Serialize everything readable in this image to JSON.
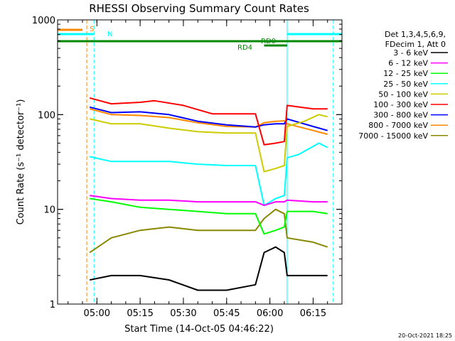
{
  "chart_data": {
    "type": "line",
    "title": "RHESSI Observing Summary Count Rates",
    "xlabel": "Start Time (14-Oct-05 04:46:22)",
    "ylabel": "Count Rate (s⁻¹ detector⁻¹)",
    "y_scale": "log",
    "ylim": [
      1,
      1000
    ],
    "xlim": [
      "04:46:22",
      "06:25:00"
    ],
    "x_ticks": [
      "05:00",
      "05:15",
      "05:30",
      "05:45",
      "06:00",
      "06:15"
    ],
    "y_ticks": [
      "1",
      "10",
      "100",
      "1000"
    ],
    "legend_header": [
      "Det 1,3,4,5,6,9,",
      "FDecim 1, Att 0"
    ],
    "legend_position": "right",
    "series": [
      {
        "name": "3 - 6 keV",
        "color": "#000000",
        "points": [
          [
            "04:57:30",
            1.8
          ],
          [
            "05:05",
            2.0
          ],
          [
            "05:15",
            2.0
          ],
          [
            "05:25",
            1.8
          ],
          [
            "05:35",
            1.4
          ],
          [
            "05:45",
            1.4
          ],
          [
            "05:55",
            1.6
          ],
          [
            "05:58",
            3.5
          ],
          [
            "06:02",
            4.0
          ],
          [
            "06:05",
            3.5
          ],
          [
            "06:06",
            2.0
          ],
          [
            "06:15",
            2.0
          ],
          [
            "06:20",
            2.0
          ]
        ]
      },
      {
        "name": "6 - 12 keV",
        "color": "#ff00ff",
        "points": [
          [
            "04:57:30",
            14
          ],
          [
            "05:05",
            13
          ],
          [
            "05:15",
            12.5
          ],
          [
            "05:25",
            12.5
          ],
          [
            "05:35",
            12
          ],
          [
            "05:45",
            12
          ],
          [
            "05:55",
            12
          ],
          [
            "05:58",
            11
          ],
          [
            "06:02",
            12
          ],
          [
            "06:05",
            12
          ],
          [
            "06:06",
            12.5
          ],
          [
            "06:15",
            12
          ],
          [
            "06:20",
            12
          ]
        ]
      },
      {
        "name": "12 - 25 keV",
        "color": "#00ff00",
        "points": [
          [
            "04:57:30",
            13
          ],
          [
            "05:05",
            12
          ],
          [
            "05:15",
            10.5
          ],
          [
            "05:25",
            10
          ],
          [
            "05:35",
            9.5
          ],
          [
            "05:45",
            9
          ],
          [
            "05:55",
            9
          ],
          [
            "05:58",
            5.5
          ],
          [
            "06:02",
            6.0
          ],
          [
            "06:05",
            6.5
          ],
          [
            "06:06",
            9.5
          ],
          [
            "06:15",
            9.5
          ],
          [
            "06:20",
            9
          ]
        ]
      },
      {
        "name": "25 - 50 keV",
        "color": "#00ffff",
        "points": [
          [
            "04:57:30",
            36
          ],
          [
            "05:05",
            32
          ],
          [
            "05:15",
            32
          ],
          [
            "05:25",
            32
          ],
          [
            "05:35",
            30
          ],
          [
            "05:45",
            29
          ],
          [
            "05:55",
            29
          ],
          [
            "05:58",
            11
          ],
          [
            "06:02",
            13
          ],
          [
            "06:05",
            14
          ],
          [
            "06:06",
            35
          ],
          [
            "06:10",
            38
          ],
          [
            "06:17",
            50
          ],
          [
            "06:20",
            45
          ]
        ]
      },
      {
        "name": "50 - 100 keV",
        "color": "#cccc00",
        "points": [
          [
            "04:57:30",
            90
          ],
          [
            "05:05",
            80
          ],
          [
            "05:15",
            80
          ],
          [
            "05:25",
            72
          ],
          [
            "05:35",
            66
          ],
          [
            "05:45",
            64
          ],
          [
            "05:55",
            64
          ],
          [
            "05:58",
            25
          ],
          [
            "06:02",
            27
          ],
          [
            "06:05",
            29
          ],
          [
            "06:06",
            75
          ],
          [
            "06:12",
            85
          ],
          [
            "06:17",
            100
          ],
          [
            "06:20",
            95
          ]
        ]
      },
      {
        "name": "100 - 300 keV",
        "color": "#ff0000",
        "points": [
          [
            "04:57:30",
            150
          ],
          [
            "05:05",
            130
          ],
          [
            "05:15",
            135
          ],
          [
            "05:20",
            140
          ],
          [
            "05:30",
            125
          ],
          [
            "05:40",
            102
          ],
          [
            "05:50",
            102
          ],
          [
            "05:55",
            102
          ],
          [
            "05:58",
            48
          ],
          [
            "06:02",
            50
          ],
          [
            "06:05",
            52
          ],
          [
            "06:06",
            125
          ],
          [
            "06:15",
            115
          ],
          [
            "06:20",
            115
          ]
        ]
      },
      {
        "name": "300 - 800 keV",
        "color": "#0000ff",
        "points": [
          [
            "04:57:30",
            120
          ],
          [
            "05:05",
            105
          ],
          [
            "05:15",
            107
          ],
          [
            "05:25",
            100
          ],
          [
            "05:35",
            85
          ],
          [
            "05:45",
            78
          ],
          [
            "05:55",
            74
          ],
          [
            "05:58",
            78
          ],
          [
            "06:02",
            80
          ],
          [
            "06:05",
            80
          ],
          [
            "06:06",
            90
          ],
          [
            "06:15",
            75
          ],
          [
            "06:20",
            68
          ]
        ]
      },
      {
        "name": "800 - 7000 keV",
        "color": "#ff8800",
        "points": [
          [
            "04:57:30",
            115
          ],
          [
            "05:05",
            100
          ],
          [
            "05:15",
            98
          ],
          [
            "05:25",
            93
          ],
          [
            "05:35",
            82
          ],
          [
            "05:45",
            75
          ],
          [
            "05:55",
            74
          ],
          [
            "05:58",
            82
          ],
          [
            "06:02",
            85
          ],
          [
            "06:05",
            86
          ],
          [
            "06:06",
            80
          ],
          [
            "06:15",
            68
          ],
          [
            "06:20",
            62
          ]
        ]
      },
      {
        "name": "7000 - 15000 keV",
        "color": "#888800",
        "points": [
          [
            "04:57:30",
            3.5
          ],
          [
            "05:05",
            5
          ],
          [
            "05:15",
            6
          ],
          [
            "05:25",
            6.5
          ],
          [
            "05:35",
            6
          ],
          [
            "05:45",
            6
          ],
          [
            "05:55",
            6
          ],
          [
            "05:58",
            8
          ],
          [
            "06:02",
            10
          ],
          [
            "06:05",
            9
          ],
          [
            "06:06",
            5
          ],
          [
            "06:15",
            4.5
          ],
          [
            "06:20",
            4
          ]
        ]
      }
    ],
    "status_flags": [
      {
        "label": "S",
        "color": "#ff8800",
        "start": "04:46:22",
        "end": "04:55:00"
      },
      {
        "label": "N",
        "color": "#00ffff",
        "start": "04:46:22",
        "end": "04:59:00"
      },
      {
        "label": "N",
        "color": "#00ffff",
        "start": "06:06:00",
        "end": "06:25:00"
      },
      {
        "label": "RD0",
        "color": "#008800",
        "start": "04:46:22",
        "end": "06:25:00"
      },
      {
        "label": "RD4",
        "color": "#008800",
        "start": "05:58:00",
        "end": "06:06:00"
      }
    ],
    "flag_text_labels": [
      "S",
      "N",
      "RD0",
      "RD4"
    ],
    "vertical_markers": [
      {
        "time": "04:56:30",
        "color": "#ff8800",
        "style": "dashed"
      },
      {
        "time": "04:59:00",
        "color": "#00ffff",
        "style": "dashed"
      },
      {
        "time": "06:06:00",
        "color": "#00ffff",
        "style": "solid"
      },
      {
        "time": "06:22:00",
        "color": "#00ffff",
        "style": "dashed"
      }
    ],
    "footer_timestamp": "20-Oct-2021 18:25"
  }
}
